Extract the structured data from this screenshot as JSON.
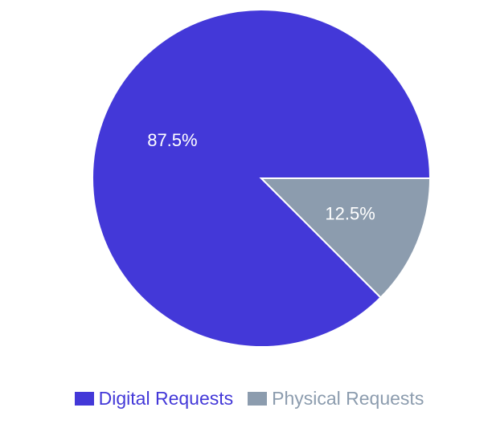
{
  "chart_data": {
    "type": "pie",
    "categories": [
      "Digital Requests",
      "Physical Requests"
    ],
    "values": [
      87.5,
      12.5
    ],
    "value_labels": [
      "87.5%",
      "12.5%"
    ],
    "colors": [
      "#4338d8",
      "#8c9cae"
    ],
    "legend_placement": "bottom",
    "title": ""
  },
  "legend": {
    "items": [
      {
        "label": "Digital Requests",
        "color": "#4338d8"
      },
      {
        "label": "Physical Requests",
        "color": "#8c9cae"
      }
    ]
  }
}
